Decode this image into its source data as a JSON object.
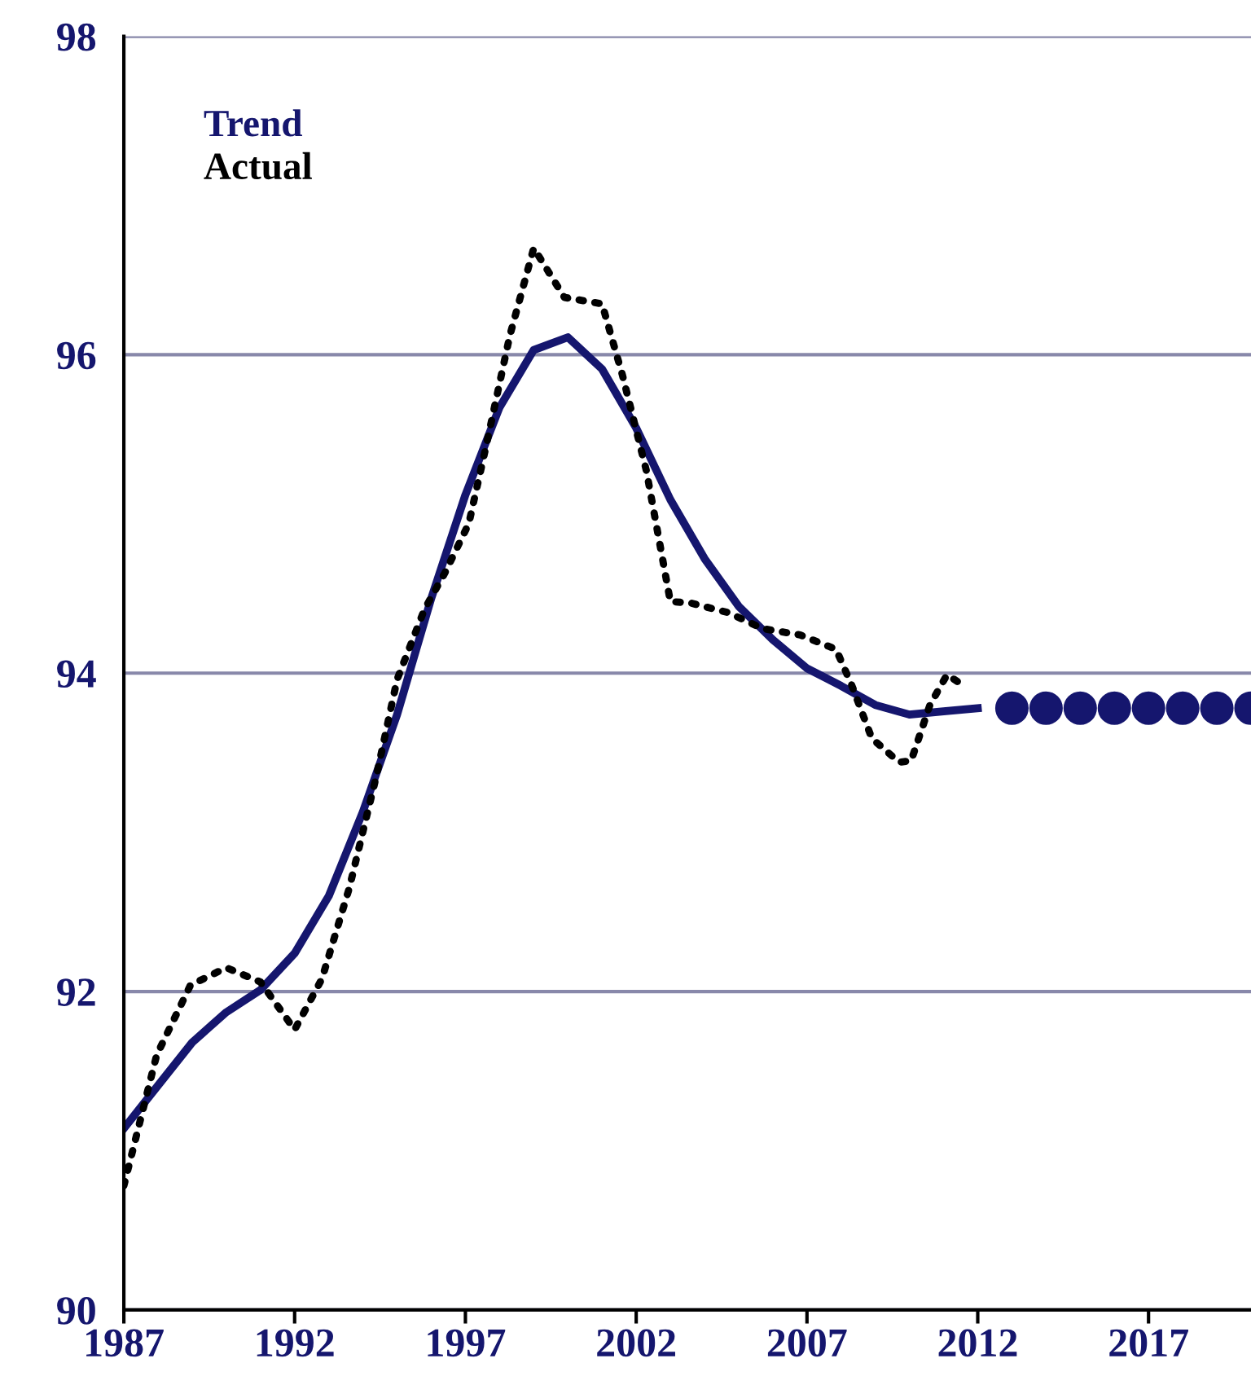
{
  "chart_data": {
    "type": "line",
    "legend": "top left",
    "grid": "y",
    "xlim": [
      1987,
      2020
    ],
    "xticks": [
      1987,
      1992,
      1997,
      2002,
      2007,
      2012,
      2017
    ],
    "ylim": [
      90,
      98
    ],
    "yticks": [
      90,
      92,
      94,
      96,
      98
    ],
    "series": [
      {
        "name": "Trend",
        "color": "#15166e",
        "line_style": "solid",
        "x": [
          1987,
          1988,
          1989,
          1990,
          1991,
          1992,
          1993,
          1994,
          1995,
          1996,
          1997,
          1998,
          1999,
          2000,
          2001,
          2002,
          2003,
          2004,
          2005,
          2006,
          2007,
          2008,
          2009,
          2010,
          2011,
          2012
        ],
        "values": [
          91.14,
          91.41,
          91.68,
          91.87,
          92.01,
          92.24,
          92.6,
          93.13,
          93.74,
          94.47,
          95.12,
          95.67,
          96.03,
          96.11,
          95.91,
          95.54,
          95.09,
          94.72,
          94.42,
          94.21,
          94.03,
          93.92,
          93.8,
          93.74,
          93.76,
          93.78
        ]
      },
      {
        "name": "Actual",
        "color": "#000000",
        "line_style": "dotted",
        "x": [
          1987,
          1987.96,
          1988.95,
          1990,
          1991,
          1992,
          1992.8,
          1993.6,
          1994.4,
          1995,
          1995.8,
          1996.4,
          1997.1,
          1997.6,
          1998.3,
          1999,
          1999.9,
          2001,
          2001.6,
          2002.3,
          2003,
          2003.6,
          2004.7,
          2005.7,
          2006.8,
          2007.85,
          2008.3,
          2008.9,
          2009.7,
          2010.05,
          2010.6,
          2011.1,
          2011.6
        ],
        "values": [
          90.78,
          91.6,
          92.04,
          92.15,
          92.06,
          91.76,
          92.08,
          92.65,
          93.36,
          93.96,
          94.4,
          94.63,
          94.94,
          95.42,
          96.12,
          96.67,
          96.36,
          96.32,
          95.87,
          95.27,
          94.45,
          94.44,
          94.38,
          94.28,
          94.24,
          94.15,
          93.93,
          93.59,
          93.44,
          93.45,
          93.8,
          93.99,
          93.92
        ]
      },
      {
        "type": "scatter",
        "marker": "circle",
        "color": "#15166e",
        "x": [
          2013,
          2014,
          2015,
          2016,
          2017,
          2018,
          2019,
          2020
        ],
        "values": [
          93.78,
          93.78,
          93.78,
          93.78,
          93.78,
          93.78,
          93.78,
          93.78
        ]
      }
    ]
  }
}
